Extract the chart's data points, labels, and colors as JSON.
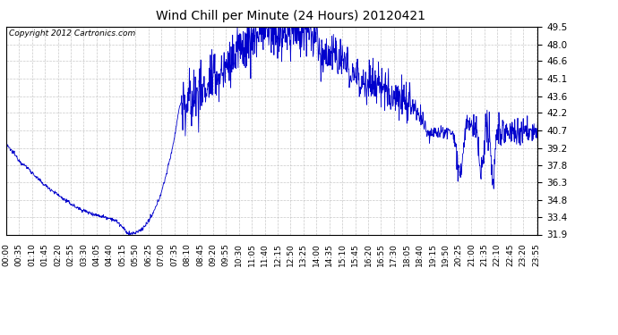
{
  "title": "Wind Chill per Minute (24 Hours) 20120421",
  "copyright": "Copyright 2012 Cartronics.com",
  "line_color": "#0000cc",
  "background_color": "#ffffff",
  "grid_color": "#bbbbbb",
  "ylim": [
    31.9,
    49.5
  ],
  "yticks": [
    31.9,
    33.4,
    34.8,
    36.3,
    37.8,
    39.2,
    40.7,
    42.2,
    43.6,
    45.1,
    46.6,
    48.0,
    49.5
  ],
  "xtick_labels": [
    "00:00",
    "00:35",
    "01:10",
    "01:45",
    "02:20",
    "02:55",
    "03:30",
    "04:05",
    "04:40",
    "05:15",
    "05:50",
    "06:25",
    "07:00",
    "07:35",
    "08:10",
    "08:45",
    "09:20",
    "09:55",
    "10:30",
    "11:05",
    "11:40",
    "12:15",
    "12:50",
    "13:25",
    "14:00",
    "14:35",
    "15:10",
    "15:45",
    "16:20",
    "16:55",
    "17:30",
    "18:05",
    "18:40",
    "19:15",
    "19:50",
    "20:25",
    "21:00",
    "21:35",
    "22:10",
    "22:45",
    "23:20",
    "23:55"
  ],
  "control_points": [
    [
      0,
      39.5
    ],
    [
      20,
      38.8
    ],
    [
      40,
      38.0
    ],
    [
      60,
      37.5
    ],
    [
      80,
      36.8
    ],
    [
      100,
      36.2
    ],
    [
      130,
      35.5
    ],
    [
      160,
      34.8
    ],
    [
      190,
      34.2
    ],
    [
      220,
      33.8
    ],
    [
      250,
      33.5
    ],
    [
      280,
      33.3
    ],
    [
      300,
      33.0
    ],
    [
      315,
      32.5
    ],
    [
      325,
      32.1
    ],
    [
      335,
      31.95
    ],
    [
      345,
      32.0
    ],
    [
      355,
      32.1
    ],
    [
      365,
      32.3
    ],
    [
      375,
      32.6
    ],
    [
      385,
      33.0
    ],
    [
      395,
      33.5
    ],
    [
      405,
      34.2
    ],
    [
      415,
      35.0
    ],
    [
      425,
      36.0
    ],
    [
      435,
      37.2
    ],
    [
      445,
      38.5
    ],
    [
      455,
      40.0
    ],
    [
      460,
      41.0
    ],
    [
      465,
      42.0
    ],
    [
      470,
      42.8
    ],
    [
      475,
      43.2
    ],
    [
      480,
      43.0
    ],
    [
      485,
      42.5
    ],
    [
      490,
      43.0
    ],
    [
      495,
      43.3
    ],
    [
      500,
      43.0
    ],
    [
      505,
      43.5
    ],
    [
      510,
      44.0
    ],
    [
      515,
      43.5
    ],
    [
      520,
      44.0
    ],
    [
      525,
      44.5
    ],
    [
      530,
      43.8
    ],
    [
      535,
      44.2
    ],
    [
      540,
      44.5
    ],
    [
      545,
      44.0
    ],
    [
      550,
      44.8
    ],
    [
      555,
      45.0
    ],
    [
      560,
      44.5
    ],
    [
      565,
      45.2
    ],
    [
      570,
      45.5
    ],
    [
      575,
      44.8
    ],
    [
      580,
      45.5
    ],
    [
      585,
      46.0
    ],
    [
      590,
      45.5
    ],
    [
      595,
      46.2
    ],
    [
      600,
      46.5
    ],
    [
      605,
      46.0
    ],
    [
      610,
      46.8
    ],
    [
      615,
      47.2
    ],
    [
      620,
      46.8
    ],
    [
      625,
      47.5
    ],
    [
      630,
      47.8
    ],
    [
      635,
      47.2
    ],
    [
      640,
      47.8
    ],
    [
      645,
      48.2
    ],
    [
      650,
      47.8
    ],
    [
      655,
      48.5
    ],
    [
      660,
      48.8
    ],
    [
      665,
      48.2
    ],
    [
      670,
      48.8
    ],
    [
      675,
      49.2
    ],
    [
      680,
      48.8
    ],
    [
      685,
      49.3
    ],
    [
      690,
      49.5
    ],
    [
      695,
      49.0
    ],
    [
      700,
      49.5
    ],
    [
      705,
      49.2
    ],
    [
      710,
      48.8
    ],
    [
      715,
      49.5
    ],
    [
      720,
      49.2
    ],
    [
      725,
      48.8
    ],
    [
      730,
      49.0
    ],
    [
      735,
      48.5
    ],
    [
      740,
      49.0
    ],
    [
      745,
      48.5
    ],
    [
      750,
      49.0
    ],
    [
      755,
      48.8
    ],
    [
      760,
      49.2
    ],
    [
      765,
      48.8
    ],
    [
      770,
      49.0
    ],
    [
      775,
      49.5
    ],
    [
      780,
      49.0
    ],
    [
      785,
      49.5
    ],
    [
      790,
      49.2
    ],
    [
      795,
      48.8
    ],
    [
      800,
      49.2
    ],
    [
      805,
      49.5
    ],
    [
      810,
      49.0
    ],
    [
      815,
      49.2
    ],
    [
      820,
      49.0
    ],
    [
      825,
      48.5
    ],
    [
      830,
      49.0
    ],
    [
      835,
      48.5
    ],
    [
      840,
      49.0
    ],
    [
      845,
      47.5
    ],
    [
      850,
      47.0
    ],
    [
      855,
      47.5
    ],
    [
      860,
      47.0
    ],
    [
      865,
      47.5
    ],
    [
      870,
      46.8
    ],
    [
      875,
      47.2
    ],
    [
      880,
      47.5
    ],
    [
      885,
      46.8
    ],
    [
      890,
      47.2
    ],
    [
      895,
      46.8
    ],
    [
      900,
      46.5
    ],
    [
      905,
      47.0
    ],
    [
      910,
      46.5
    ],
    [
      915,
      46.0
    ],
    [
      920,
      46.5
    ],
    [
      925,
      46.0
    ],
    [
      930,
      45.5
    ],
    [
      935,
      46.0
    ],
    [
      940,
      45.5
    ],
    [
      945,
      45.0
    ],
    [
      950,
      45.5
    ],
    [
      955,
      45.0
    ],
    [
      960,
      44.8
    ],
    [
      965,
      45.2
    ],
    [
      970,
      44.8
    ],
    [
      975,
      45.0
    ],
    [
      980,
      44.5
    ],
    [
      985,
      45.0
    ],
    [
      990,
      44.5
    ],
    [
      995,
      44.8
    ],
    [
      1000,
      44.5
    ],
    [
      1005,
      44.8
    ],
    [
      1010,
      44.5
    ],
    [
      1015,
      44.2
    ],
    [
      1020,
      44.5
    ],
    [
      1025,
      44.0
    ],
    [
      1030,
      44.5
    ],
    [
      1035,
      44.0
    ],
    [
      1040,
      43.8
    ],
    [
      1045,
      44.2
    ],
    [
      1050,
      43.8
    ],
    [
      1055,
      43.5
    ],
    [
      1060,
      43.8
    ],
    [
      1065,
      43.5
    ],
    [
      1070,
      43.2
    ],
    [
      1075,
      43.5
    ],
    [
      1080,
      43.2
    ],
    [
      1085,
      43.0
    ],
    [
      1090,
      43.2
    ],
    [
      1095,
      43.0
    ],
    [
      1100,
      42.8
    ],
    [
      1105,
      42.5
    ],
    [
      1110,
      42.2
    ],
    [
      1115,
      42.0
    ],
    [
      1120,
      41.8
    ],
    [
      1125,
      41.5
    ],
    [
      1130,
      41.2
    ],
    [
      1135,
      41.0
    ],
    [
      1140,
      40.8
    ],
    [
      1145,
      40.5
    ],
    [
      1150,
      40.8
    ],
    [
      1155,
      40.5
    ],
    [
      1160,
      40.8
    ],
    [
      1165,
      40.5
    ],
    [
      1170,
      40.8
    ],
    [
      1175,
      40.5
    ],
    [
      1180,
      40.8
    ],
    [
      1185,
      40.5
    ],
    [
      1190,
      40.8
    ],
    [
      1195,
      40.5
    ],
    [
      1200,
      40.7
    ],
    [
      1205,
      40.5
    ],
    [
      1210,
      40.7
    ],
    [
      1215,
      39.5
    ],
    [
      1220,
      38.8
    ],
    [
      1225,
      38.2
    ],
    [
      1228,
      37.5
    ],
    [
      1230,
      37.0
    ],
    [
      1233,
      37.5
    ],
    [
      1236,
      38.5
    ],
    [
      1239,
      39.5
    ],
    [
      1242,
      40.5
    ],
    [
      1245,
      41.0
    ],
    [
      1250,
      41.2
    ],
    [
      1255,
      41.0
    ],
    [
      1260,
      40.8
    ],
    [
      1265,
      41.0
    ],
    [
      1270,
      40.8
    ],
    [
      1275,
      40.7
    ],
    [
      1278,
      39.0
    ],
    [
      1281,
      38.0
    ],
    [
      1284,
      37.2
    ],
    [
      1287,
      36.8
    ],
    [
      1290,
      37.5
    ],
    [
      1293,
      38.5
    ],
    [
      1296,
      39.5
    ],
    [
      1299,
      40.5
    ],
    [
      1302,
      41.0
    ],
    [
      1305,
      40.8
    ],
    [
      1308,
      40.7
    ],
    [
      1310,
      40.5
    ],
    [
      1313,
      38.0
    ],
    [
      1315,
      36.8
    ],
    [
      1317,
      36.5
    ],
    [
      1320,
      37.0
    ],
    [
      1323,
      38.5
    ],
    [
      1326,
      39.5
    ],
    [
      1329,
      40.5
    ],
    [
      1332,
      40.8
    ],
    [
      1335,
      40.7
    ],
    [
      1340,
      40.5
    ],
    [
      1345,
      40.7
    ],
    [
      1350,
      40.5
    ],
    [
      1355,
      40.7
    ],
    [
      1360,
      40.5
    ],
    [
      1365,
      40.7
    ],
    [
      1370,
      40.5
    ],
    [
      1375,
      40.7
    ],
    [
      1380,
      40.5
    ],
    [
      1385,
      40.7
    ],
    [
      1390,
      40.5
    ],
    [
      1395,
      40.7
    ],
    [
      1400,
      40.5
    ],
    [
      1405,
      40.7
    ],
    [
      1410,
      40.5
    ],
    [
      1415,
      40.6
    ],
    [
      1420,
      40.7
    ],
    [
      1425,
      40.6
    ],
    [
      1430,
      40.5
    ],
    [
      1435,
      40.6
    ],
    [
      1439,
      40.5
    ]
  ]
}
